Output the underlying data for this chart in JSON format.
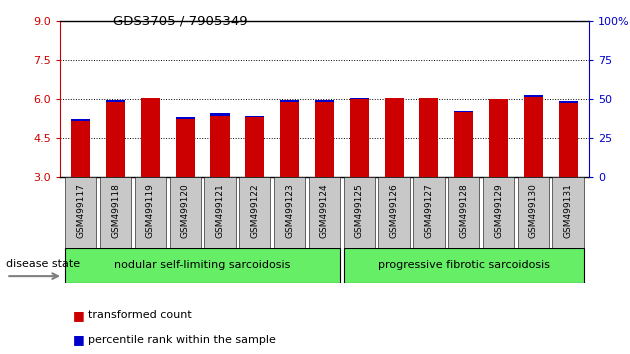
{
  "title": "GDS3705 / 7905349",
  "samples": [
    "GSM499117",
    "GSM499118",
    "GSM499119",
    "GSM499120",
    "GSM499121",
    "GSM499122",
    "GSM499123",
    "GSM499124",
    "GSM499125",
    "GSM499126",
    "GSM499127",
    "GSM499128",
    "GSM499129",
    "GSM499130",
    "GSM499131"
  ],
  "red_values": [
    5.15,
    5.9,
    6.05,
    5.25,
    5.35,
    5.3,
    5.9,
    5.9,
    6.0,
    6.05,
    6.05,
    5.5,
    6.0,
    6.1,
    5.85
  ],
  "blue_values": [
    5.22,
    5.96,
    6.06,
    5.32,
    5.46,
    5.36,
    5.96,
    5.96,
    6.06,
    6.06,
    6.06,
    5.56,
    6.01,
    6.16,
    5.91
  ],
  "ylim_left": [
    3,
    9
  ],
  "ylim_right": [
    0,
    100
  ],
  "yticks_left": [
    3,
    4.5,
    6,
    7.5,
    9
  ],
  "yticks_right": [
    0,
    25,
    50,
    75,
    100
  ],
  "bar_bottom": 3.0,
  "red_color": "#cc0000",
  "blue_color": "#0000cc",
  "group1_label": "nodular self-limiting sarcoidosis",
  "group2_label": "progressive fibrotic sarcoidosis",
  "group1_count": 8,
  "disease_label": "disease state",
  "legend1": "transformed count",
  "legend2": "percentile rank within the sample",
  "group_bg": "#66ee66",
  "tick_bg": "#c8c8c8",
  "bar_width": 0.55,
  "bg_color": "#ffffff"
}
